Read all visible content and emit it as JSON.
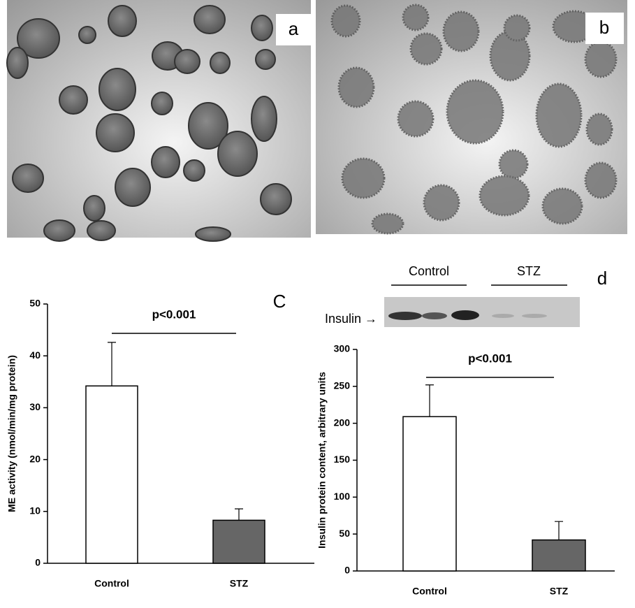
{
  "image_labels": [
    "a",
    "b"
  ],
  "chart_data": [
    {
      "type": "bar",
      "panel_label": "C",
      "ylabel": "ME activity (nmol/min/mg protein)",
      "categories": [
        "Control",
        "STZ"
      ],
      "values": [
        34.2,
        8.3
      ],
      "errors": [
        8.4,
        2.2
      ],
      "colors": [
        "#ffffff",
        "#666666"
      ],
      "ylim": [
        0,
        50
      ],
      "yticks": [
        0,
        10,
        20,
        30,
        40,
        50
      ],
      "annotation": "p<0.001"
    },
    {
      "type": "bar",
      "panel_label": "d",
      "ylabel": "Insulin protein content, arbitrary units",
      "blot": {
        "label": "Insulin →",
        "groups": [
          "Control",
          "STZ"
        ]
      },
      "categories": [
        "Control",
        "STZ"
      ],
      "values": [
        209,
        42
      ],
      "errors": [
        43,
        25
      ],
      "colors": [
        "#ffffff",
        "#666666"
      ],
      "ylim": [
        0,
        300
      ],
      "yticks": [
        0,
        50,
        100,
        150,
        200,
        250,
        300
      ],
      "annotation": "p<0.001"
    }
  ]
}
